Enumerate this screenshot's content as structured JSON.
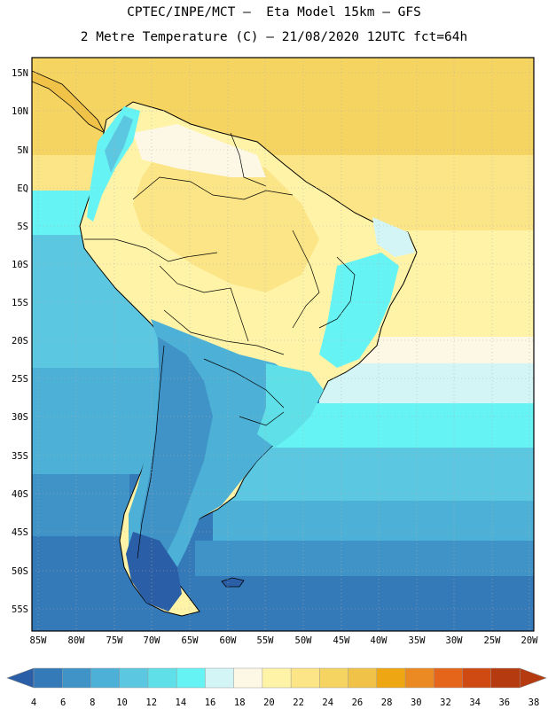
{
  "title": {
    "line1": "CPTEC/INPE/MCT –  Eta Model 15km – GFS",
    "line2": "2 Metre Temperature (C) – 21/08/2020 12UTC fct=64h"
  },
  "map": {
    "lat_labels": [
      "15N",
      "10N",
      "5N",
      "EQ",
      "5S",
      "10S",
      "15S",
      "20S",
      "25S",
      "30S",
      "35S",
      "40S",
      "45S",
      "50S",
      "55S"
    ],
    "lon_labels": [
      "85W",
      "80W",
      "75W",
      "70W",
      "65W",
      "60W",
      "55W",
      "50W",
      "45W",
      "40W",
      "35W",
      "30W",
      "25W",
      "20W"
    ]
  },
  "colorbar": {
    "labels": [
      "4",
      "6",
      "8",
      "10",
      "12",
      "14",
      "16",
      "18",
      "20",
      "22",
      "24",
      "26",
      "28",
      "30",
      "32",
      "34",
      "36",
      "38"
    ],
    "colors": [
      "#2a5ea6",
      "#3479b8",
      "#3f93c6",
      "#4db0d6",
      "#5cc7e0",
      "#5fdfe8",
      "#66f3f3",
      "#d3f5f6",
      "#fdf8e6",
      "#fef3a6",
      "#fbe586",
      "#f6d462",
      "#f0c247",
      "#efa613",
      "#eb8a22",
      "#e5661a",
      "#cf4a12",
      "#b63a0f"
    ]
  }
}
